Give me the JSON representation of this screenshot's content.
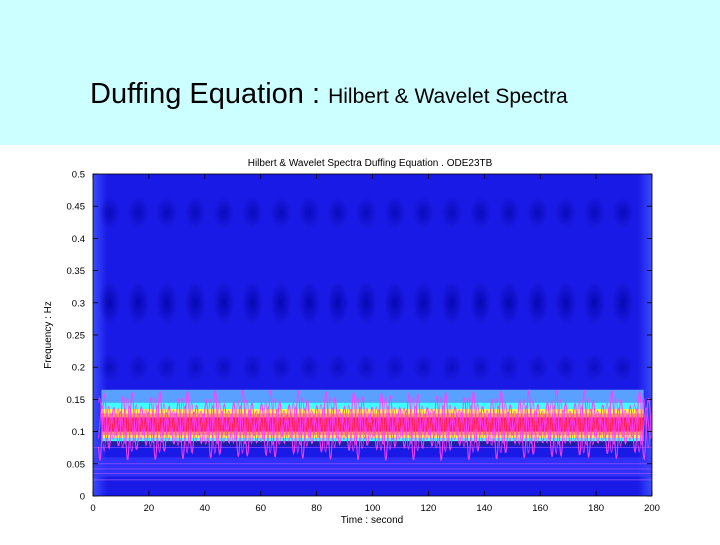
{
  "slide": {
    "title_main": "Duffing Equation :",
    "title_sub": "Hilbert & Wavelet Spectra"
  },
  "colors": {
    "banner": "#ccffff",
    "spectrum_background": "#1a1ae6",
    "spectrum_band": "#ff2050",
    "hilbert_trace": "#ff40ff"
  },
  "chart_data": {
    "type": "heatmap",
    "title": "Hilbert & Wavelet Spectra Duffing Equation . ODE23TB",
    "xlabel": "Time : second",
    "ylabel": "Frequency : Hz",
    "xlim": [
      0,
      200
    ],
    "ylim": [
      0,
      0.5
    ],
    "xticks": [
      0,
      20,
      40,
      60,
      80,
      100,
      120,
      140,
      160,
      180,
      200
    ],
    "yticks": [
      0,
      0.05,
      0.1,
      0.15,
      0.2,
      0.25,
      0.3,
      0.35,
      0.4,
      0.45,
      0.5
    ],
    "ytick_labels": [
      "0",
      "0.05",
      "0.1",
      "0.15",
      "0.2",
      "0.25",
      "0.3",
      "0.35",
      "0.4",
      "0.45",
      "0.5"
    ],
    "wavelet_band": {
      "center_frequency": 0.11,
      "peak_band": [
        0.1,
        0.125
      ],
      "lower_band": [
        0.08,
        0.09
      ],
      "time_range": [
        3,
        197
      ]
    },
    "hilbert_spectrum": {
      "mean_frequency": 0.11,
      "frequency_range": [
        0.05,
        0.16
      ],
      "oscillation_period": 3.3,
      "time_range": [
        2,
        200
      ]
    }
  }
}
